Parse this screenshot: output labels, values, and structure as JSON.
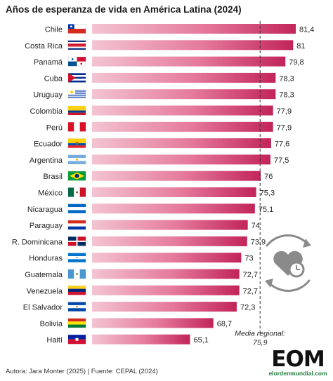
{
  "title": "Años de esperanza de vida en América Latina (2024)",
  "footer": "Autora: Jara Monter (2025) | Fuente: CEPAL (2024)",
  "logo": {
    "mark": "EOM",
    "site": "elordenmundial.com"
  },
  "colors": {
    "bar_dark": "#c2245a",
    "bar_light": "#f3c4d2",
    "bar_right": "#d6336c",
    "mean_line": "#333333"
  },
  "icon": "heart-clock-cycle-icon",
  "chart_data": {
    "type": "bar",
    "orientation": "horizontal",
    "categories": [
      "Chile",
      "Costa Rica",
      "Panamá",
      "Cuba",
      "Uruguay",
      "Colombia",
      "Perú",
      "Ecuador",
      "Argentina",
      "Brasil",
      "México",
      "Nicaragua",
      "Paraguay",
      "R. Dominicana",
      "Honduras",
      "Guatemala",
      "Venezuela",
      "El Salvador",
      "Bolivia",
      "Haití"
    ],
    "value_labels": [
      "81,4",
      "81",
      "79,8",
      "78,3",
      "78,3",
      "77,9",
      "77,9",
      "77,6",
      "77,5",
      "76",
      "75,3",
      "75,1",
      "74",
      "73,9",
      "73",
      "72,7",
      "72,7",
      "72,3",
      "68,7",
      "65,1"
    ],
    "values": [
      81.4,
      81,
      79.8,
      78.3,
      78.3,
      77.9,
      77.9,
      77.6,
      77.5,
      76,
      75.3,
      75.1,
      74,
      73.9,
      73,
      72.7,
      72.7,
      72.3,
      68.7,
      65.1
    ],
    "flags": [
      "chile-flag-icon",
      "costa-rica-flag-icon",
      "panama-flag-icon",
      "cuba-flag-icon",
      "uruguay-flag-icon",
      "colombia-flag-icon",
      "peru-flag-icon",
      "ecuador-flag-icon",
      "argentina-flag-icon",
      "brazil-flag-icon",
      "mexico-flag-icon",
      "nicaragua-flag-icon",
      "paraguay-flag-icon",
      "dominican-republic-flag-icon",
      "honduras-flag-icon",
      "guatemala-flag-icon",
      "venezuela-flag-icon",
      "el-salvador-flag-icon",
      "bolivia-flag-icon",
      "haiti-flag-icon"
    ],
    "reference_line": {
      "value": 75.9,
      "label_line1": "Media regional:",
      "label_line2": "75,9"
    },
    "xlim": [
      50,
      81.4
    ],
    "grid": false,
    "legend": "none"
  }
}
